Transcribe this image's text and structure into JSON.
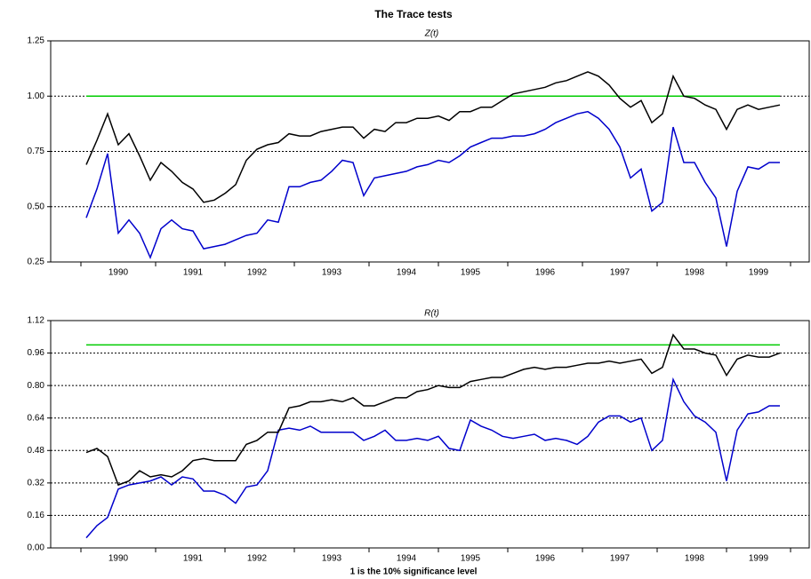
{
  "title": "The Trace tests",
  "footnote": "1 is the 10% significance level",
  "chart_data": [
    {
      "type": "line",
      "subtitle": "Z(t)",
      "categories": [
        null,
        null,
        null,
        "1990",
        null,
        null,
        null,
        null,
        null,
        null,
        "1991",
        null,
        null,
        null,
        null,
        null,
        "1992",
        null,
        null,
        null,
        null,
        null,
        null,
        "1993",
        null,
        null,
        null,
        null,
        null,
        null,
        "1994",
        null,
        null,
        null,
        null,
        null,
        "1995",
        null,
        null,
        null,
        null,
        null,
        null,
        "1996",
        null,
        null,
        null,
        null,
        null,
        null,
        "1997",
        null,
        null,
        null,
        null,
        null,
        null,
        "1998",
        null,
        null,
        null,
        null,
        null,
        "1999",
        null,
        null
      ],
      "ylim": [
        0.25,
        1.25
      ],
      "yticks": [
        0.25,
        {
          "value": 0.5,
          "label": "0.50"
        },
        0.75,
        {
          "value": 1,
          "label": "1.00"
        },
        1.25
      ],
      "grid": true,
      "series": [
        {
          "color": "#00cc00",
          "values": [
            1,
            1,
            1,
            1,
            1,
            1,
            1,
            1,
            1,
            1,
            1,
            1,
            1,
            1,
            1,
            1,
            1,
            1,
            1,
            1,
            1,
            1,
            1,
            1,
            1,
            1,
            1,
            1,
            1,
            1,
            1,
            1,
            1,
            1,
            1,
            1,
            1,
            1,
            1,
            1,
            1,
            1,
            1,
            1,
            1,
            1,
            1,
            1,
            1,
            1,
            1,
            1,
            1,
            1,
            1,
            1,
            1,
            1,
            1,
            1,
            1,
            1,
            1,
            1,
            1,
            1
          ]
        },
        {
          "color": "#0000cc",
          "values": [
            0.45,
            0.58,
            0.74,
            0.38,
            0.44,
            0.38,
            0.27,
            0.4,
            0.44,
            0.4,
            0.39,
            0.31,
            0.32,
            0.33,
            0.35,
            0.37,
            0.38,
            0.44,
            0.43,
            0.59,
            0.59,
            0.61,
            0.62,
            0.66,
            0.71,
            0.7,
            0.55,
            0.63,
            0.64,
            0.65,
            0.66,
            0.68,
            0.69,
            0.71,
            0.7,
            0.73,
            0.77,
            0.79,
            0.81,
            0.81,
            0.82,
            0.82,
            0.83,
            0.85,
            0.88,
            0.9,
            0.92,
            0.93,
            0.9,
            0.85,
            0.77,
            0.63,
            0.67,
            0.48,
            0.52,
            0.86,
            0.7,
            0.7,
            0.61,
            0.54,
            0.32,
            0.57,
            0.68,
            0.67,
            0.7,
            0.7
          ]
        },
        {
          "color": "#000000",
          "values": [
            0.69,
            0.8,
            0.92,
            0.78,
            0.83,
            0.73,
            0.62,
            0.7,
            0.66,
            0.61,
            0.58,
            0.52,
            0.53,
            0.56,
            0.6,
            0.71,
            0.76,
            0.78,
            0.79,
            0.83,
            0.82,
            0.82,
            0.84,
            0.85,
            0.86,
            0.86,
            0.81,
            0.85,
            0.84,
            0.88,
            0.88,
            0.9,
            0.9,
            0.91,
            0.89,
            0.93,
            0.93,
            0.95,
            0.95,
            0.98,
            1.01,
            1.02,
            1.03,
            1.04,
            1.06,
            1.07,
            1.09,
            1.11,
            1.09,
            1.05,
            0.99,
            0.95,
            0.98,
            0.88,
            0.92,
            1.09,
            1.0,
            0.99,
            0.96,
            0.94,
            0.85,
            0.94,
            0.96,
            0.94,
            0.95,
            0.96
          ]
        }
      ]
    },
    {
      "type": "line",
      "subtitle": "R(t)",
      "categories": [
        null,
        null,
        null,
        "1990",
        null,
        null,
        null,
        null,
        null,
        null,
        "1991",
        null,
        null,
        null,
        null,
        null,
        "1992",
        null,
        null,
        null,
        null,
        null,
        null,
        "1993",
        null,
        null,
        null,
        null,
        null,
        null,
        "1994",
        null,
        null,
        null,
        null,
        null,
        "1995",
        null,
        null,
        null,
        null,
        null,
        null,
        "1996",
        null,
        null,
        null,
        null,
        null,
        null,
        "1997",
        null,
        null,
        null,
        null,
        null,
        null,
        "1998",
        null,
        null,
        null,
        null,
        null,
        "1999",
        null,
        null
      ],
      "ylim": [
        0,
        1.12
      ],
      "yticks": [
        {
          "value": 0,
          "label": "0.00"
        },
        0.16,
        0.32,
        0.48,
        0.64,
        {
          "value": 0.8,
          "label": "0.80"
        },
        0.96,
        1.12
      ],
      "grid": true,
      "series": [
        {
          "color": "#00cc00",
          "values": [
            1,
            1,
            1,
            1,
            1,
            1,
            1,
            1,
            1,
            1,
            1,
            1,
            1,
            1,
            1,
            1,
            1,
            1,
            1,
            1,
            1,
            1,
            1,
            1,
            1,
            1,
            1,
            1,
            1,
            1,
            1,
            1,
            1,
            1,
            1,
            1,
            1,
            1,
            1,
            1,
            1,
            1,
            1,
            1,
            1,
            1,
            1,
            1,
            1,
            1,
            1,
            1,
            1,
            1,
            1,
            1,
            1,
            1,
            1,
            1,
            1,
            1,
            1,
            1,
            1,
            1
          ]
        },
        {
          "color": "#0000cc",
          "values": [
            0.05,
            0.11,
            0.15,
            0.29,
            0.31,
            0.32,
            0.33,
            0.35,
            0.31,
            0.35,
            0.34,
            0.28,
            0.28,
            0.26,
            0.22,
            0.3,
            0.31,
            0.38,
            0.58,
            0.59,
            0.58,
            0.6,
            0.57,
            0.57,
            0.57,
            0.57,
            0.53,
            0.55,
            0.58,
            0.53,
            0.53,
            0.54,
            0.53,
            0.55,
            0.49,
            0.48,
            0.63,
            0.6,
            0.58,
            0.55,
            0.54,
            0.55,
            0.56,
            0.53,
            0.54,
            0.53,
            0.51,
            0.55,
            0.62,
            0.65,
            0.65,
            0.62,
            0.64,
            0.48,
            0.53,
            0.83,
            0.72,
            0.65,
            0.62,
            0.57,
            0.33,
            0.58,
            0.66,
            0.67,
            0.7,
            0.7
          ]
        },
        {
          "color": "#000000",
          "values": [
            0.47,
            0.49,
            0.45,
            0.31,
            0.33,
            0.38,
            0.35,
            0.36,
            0.35,
            0.38,
            0.43,
            0.44,
            0.43,
            0.43,
            0.43,
            0.51,
            0.53,
            0.57,
            0.57,
            0.69,
            0.7,
            0.72,
            0.72,
            0.73,
            0.72,
            0.74,
            0.7,
            0.7,
            0.72,
            0.74,
            0.74,
            0.77,
            0.78,
            0.8,
            0.79,
            0.79,
            0.82,
            0.83,
            0.84,
            0.84,
            0.86,
            0.88,
            0.89,
            0.88,
            0.89,
            0.89,
            0.9,
            0.91,
            0.91,
            0.92,
            0.91,
            0.92,
            0.93,
            0.86,
            0.89,
            1.05,
            0.98,
            0.98,
            0.96,
            0.95,
            0.85,
            0.93,
            0.95,
            0.94,
            0.94,
            0.96
          ]
        }
      ]
    }
  ]
}
